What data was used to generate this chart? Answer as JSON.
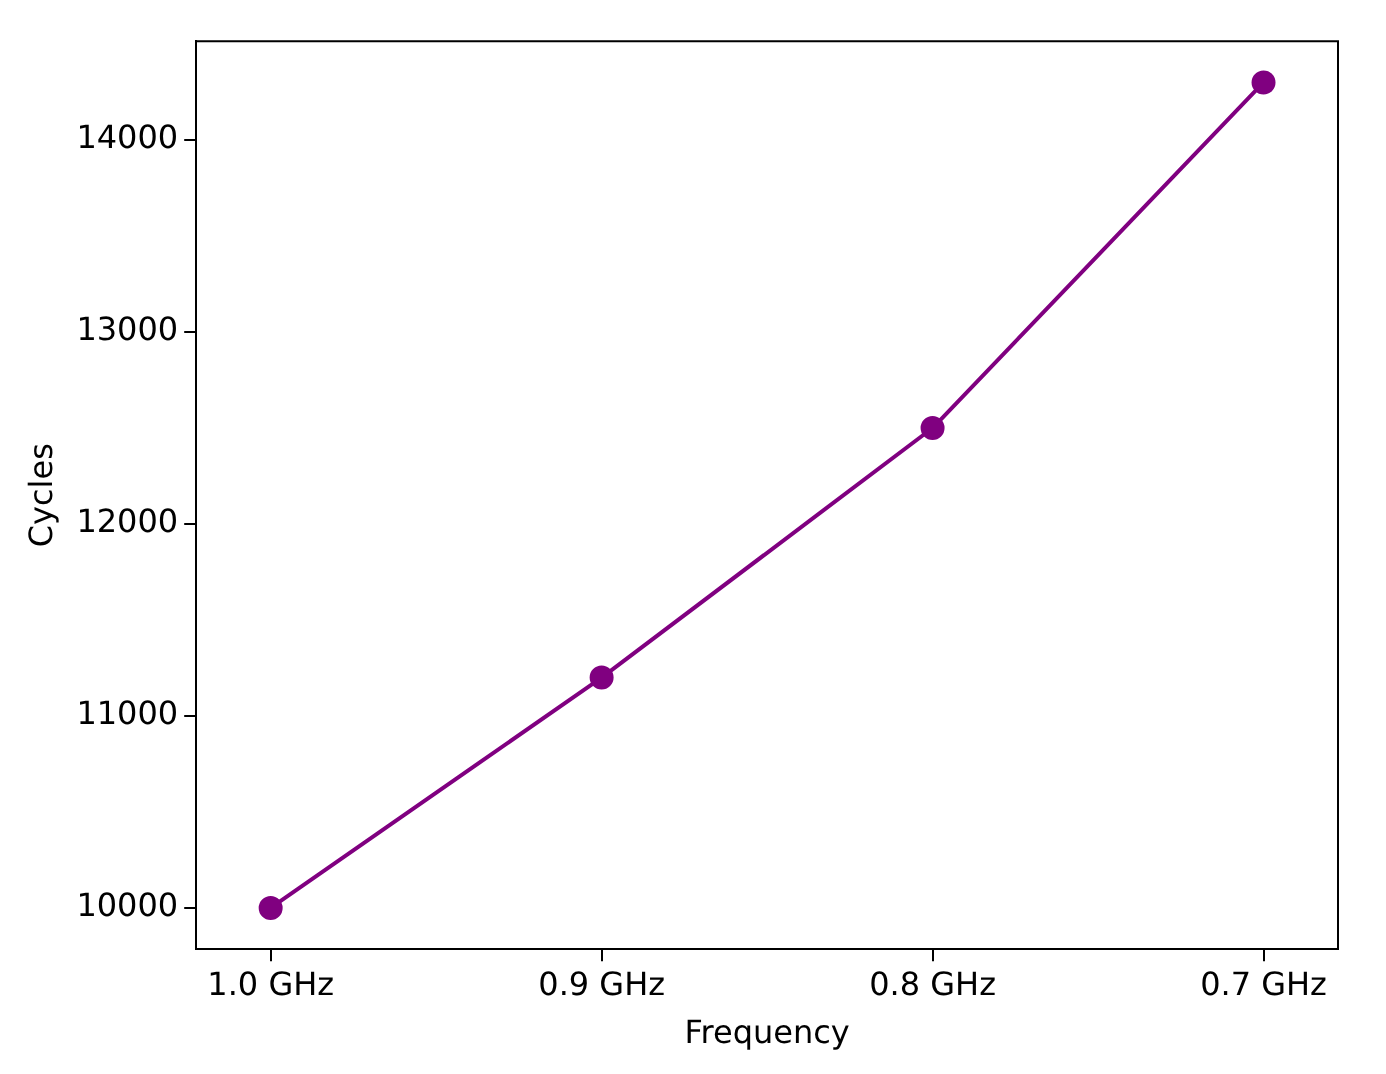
{
  "chart_data": {
    "type": "line",
    "xlabel": "Frequency",
    "ylabel": "Cycles",
    "categories": [
      "1.0 GHz",
      "0.9 GHz",
      "0.8 GHz",
      "0.7 GHz"
    ],
    "series": [
      {
        "color": "#800080",
        "values": [
          10000,
          11200,
          12500,
          14300
        ]
      }
    ],
    "ylim": [
      9785,
      14515
    ],
    "yticks": [
      10000,
      11000,
      12000,
      13000,
      14000
    ],
    "marker": "circle",
    "grid": false,
    "legend": false
  }
}
